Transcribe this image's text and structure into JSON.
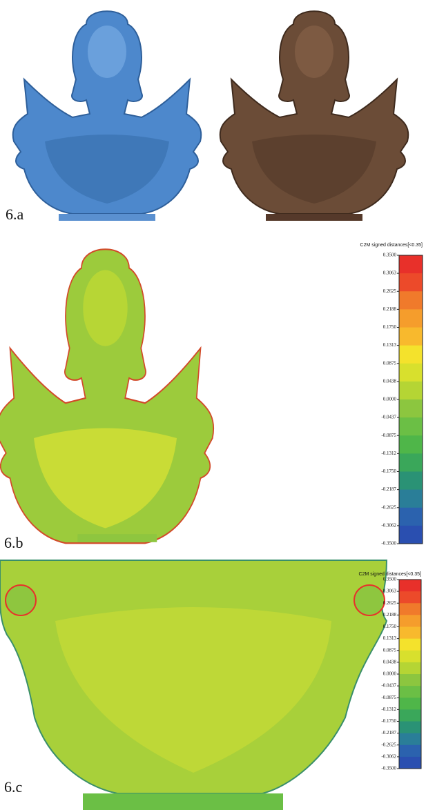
{
  "panels": [
    {
      "label": "6.a"
    },
    {
      "label": "6.b",
      "colorbar": {
        "title": "C2M signed distances[<0.35]",
        "ticks": [
          "0.3500",
          "0.3063",
          "0.2625",
          "0.2188",
          "0.1750",
          "0.1313",
          "0.0875",
          "0.0438",
          "0.0000",
          "-0.0437",
          "-0.0875",
          "-0.1312",
          "-0.1750",
          "-0.2187",
          "-0.2625",
          "-0.3062",
          "-0.3500"
        ]
      }
    },
    {
      "label": "6.c",
      "colorbar": {
        "title": "C2M signed distances[<0.35]",
        "ticks": [
          "0.3500",
          "0.3063",
          "0.2625",
          "0.2188",
          "0.1750",
          "0.1313",
          "0.0875",
          "0.0438",
          "0.0000",
          "-0.0437",
          "-0.0875",
          "-0.1312",
          "-0.1750",
          "-0.2187",
          "-0.2625",
          "-0.3062",
          "-0.3500"
        ]
      }
    }
  ]
}
